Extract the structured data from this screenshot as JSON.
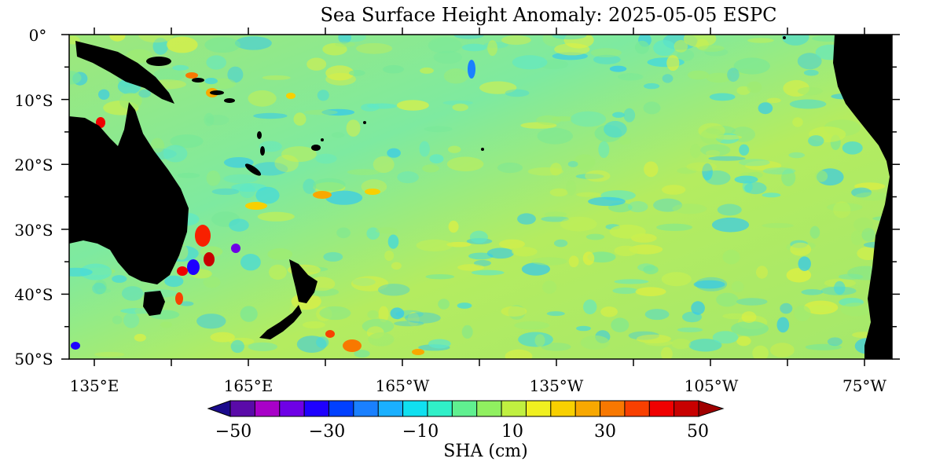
{
  "title": "Sea Surface Height Anomaly: 2025-05-05 ESPC",
  "map": {
    "lat_labels": [
      "0°",
      "10°S",
      "20°S",
      "30°S",
      "40°S",
      "50°S"
    ],
    "lon_labels": [
      "135°E",
      "165°E",
      "165°W",
      "135°W",
      "105°W",
      "75°W"
    ],
    "ocean_base_color": "#a8e86a",
    "land_color": "#000000"
  },
  "colorbar": {
    "tick_labels": [
      "−50",
      "−30",
      "−10",
      "10",
      "30",
      "50"
    ],
    "label": "SHA (cm)",
    "colors": [
      "#1a0a8c",
      "#5a0aa8",
      "#a800c8",
      "#6e00e6",
      "#1e00ff",
      "#0040ff",
      "#1a80ff",
      "#1ab0ff",
      "#10e0f0",
      "#30f0c8",
      "#60f090",
      "#90f060",
      "#c0f040",
      "#f0f020",
      "#f8d000",
      "#f8a800",
      "#f87800",
      "#f84000",
      "#f00000",
      "#c80000",
      "#a00000"
    ]
  }
}
